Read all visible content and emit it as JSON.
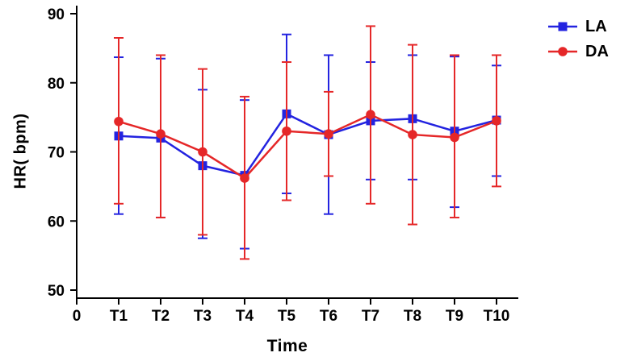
{
  "chart_data": {
    "type": "line",
    "title": "",
    "xlabel": "Time",
    "ylabel": "HR( bpm)",
    "ylim": [
      50,
      90
    ],
    "yticks": [
      50,
      60,
      70,
      80,
      90
    ],
    "x_origin_label": "0",
    "categories": [
      "T1",
      "T2",
      "T3",
      "T4",
      "T5",
      "T6",
      "T7",
      "T8",
      "T9",
      "T10"
    ],
    "grid": false,
    "legend_position": "top-right",
    "error_bars": true,
    "series": [
      {
        "name": "LA",
        "color": "#2323E0",
        "marker": "square",
        "values": [
          72.3,
          72.0,
          68.0,
          66.6,
          75.5,
          72.5,
          74.5,
          74.8,
          73.0,
          74.6
        ],
        "err_low": [
          61.0,
          60.5,
          57.5,
          56.0,
          64.0,
          61.0,
          66.0,
          66.0,
          62.0,
          66.5
        ],
        "err_high": [
          83.7,
          83.5,
          79.0,
          77.5,
          87.0,
          84.0,
          83.0,
          84.0,
          83.8,
          82.5
        ]
      },
      {
        "name": "DA",
        "color": "#E52728",
        "marker": "circle",
        "values": [
          74.4,
          72.6,
          70.0,
          66.2,
          73.0,
          72.6,
          75.4,
          72.5,
          72.1,
          74.5
        ],
        "err_low": [
          62.5,
          60.5,
          58.0,
          54.5,
          63.0,
          66.5,
          62.5,
          59.5,
          60.5,
          65.0
        ],
        "err_high": [
          86.5,
          84.0,
          82.0,
          78.0,
          83.0,
          78.7,
          88.2,
          85.5,
          84.0,
          84.0
        ]
      }
    ]
  }
}
